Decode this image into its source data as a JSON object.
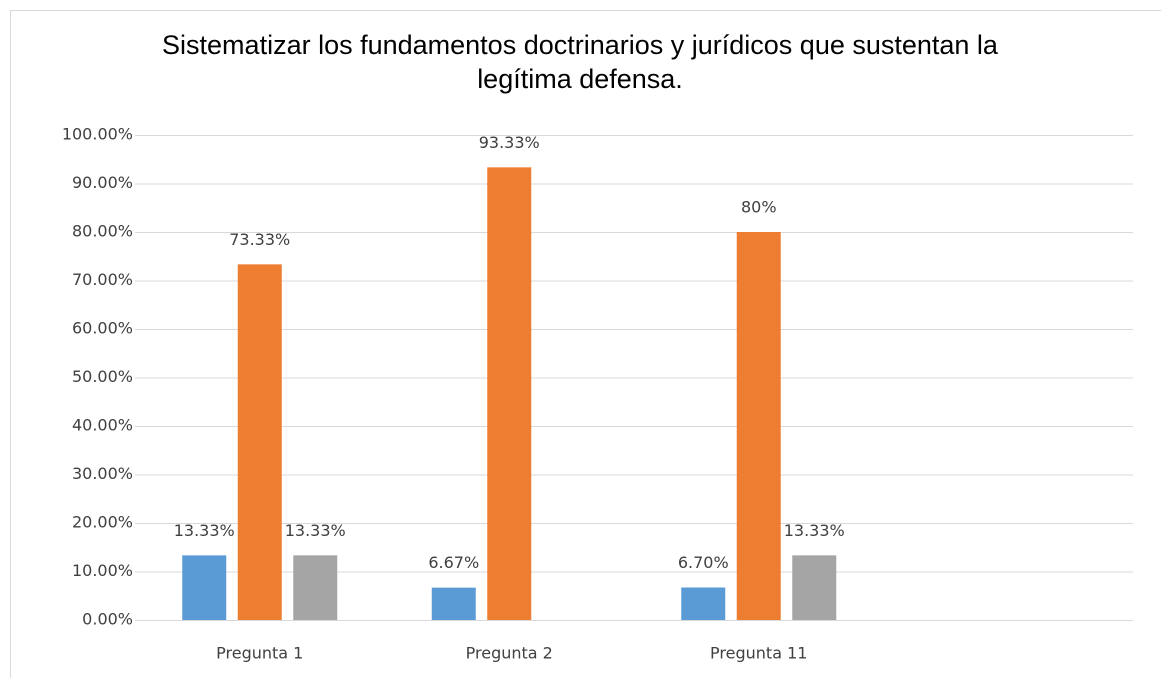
{
  "chart_data": {
    "type": "bar",
    "title": "Sistematizar los fundamentos doctrinarios y jurídicos que sustentan la legítima defensa.",
    "categories": [
      "Pregunta 1",
      "Pregunta 2",
      "Pregunta 11",
      null
    ],
    "series": [
      {
        "color": "#5b9bd5",
        "values": [
          13.33,
          6.67,
          6.7,
          null
        ],
        "value_labels": [
          "13.33%",
          "6.67%",
          "6.70%",
          null
        ]
      },
      {
        "color": "#ed7d31",
        "values": [
          73.33,
          93.33,
          80,
          null
        ],
        "value_labels": [
          "73.33%",
          "93.33%",
          "80%",
          null
        ]
      },
      {
        "color": "#a5a5a5",
        "values": [
          13.33,
          null,
          13.33,
          null
        ],
        "value_labels": [
          "13.33%",
          null,
          "13.33%",
          null
        ]
      }
    ],
    "ylim": [
      0,
      100
    ],
    "yticks": [
      {
        "value": 0,
        "label": "0.00%"
      },
      {
        "value": 10,
        "label": "10.00%"
      },
      {
        "value": 20,
        "label": "20.00%"
      },
      {
        "value": 30,
        "label": "30.00%"
      },
      {
        "value": 40,
        "label": "40.00%"
      },
      {
        "value": 50,
        "label": "50.00%"
      },
      {
        "value": 60,
        "label": "60.00%"
      },
      {
        "value": 70,
        "label": "70.00%"
      },
      {
        "value": 80,
        "label": "80.00%"
      },
      {
        "value": 90,
        "label": "90.00%"
      },
      {
        "value": 100,
        "label": "100.00%"
      }
    ],
    "grid": true
  }
}
